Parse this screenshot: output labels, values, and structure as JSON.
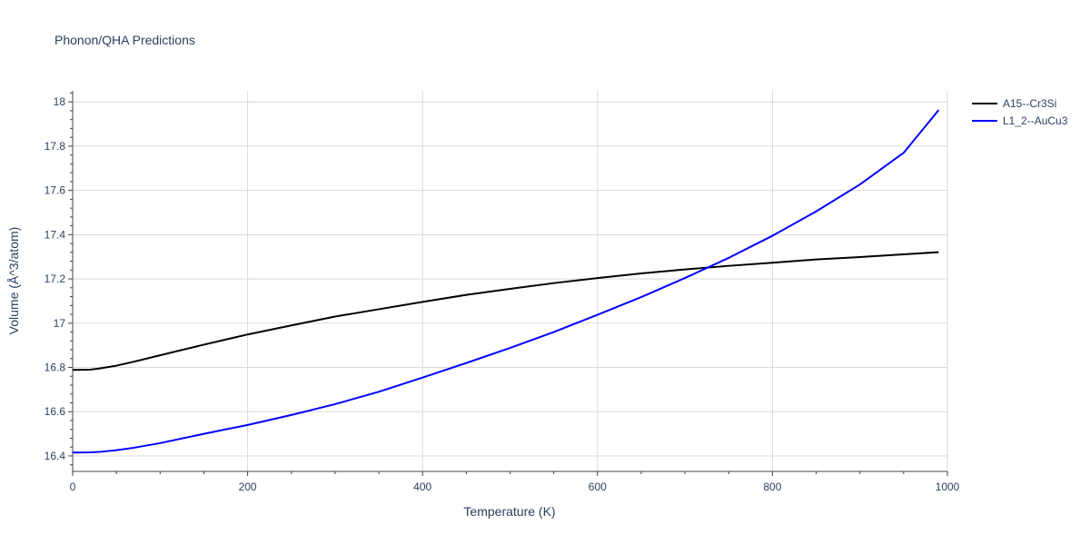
{
  "chart_data": {
    "type": "line",
    "title": "Phonon/QHA Predictions",
    "xlabel": "Temperature (K)",
    "ylabel": "Volume (Å^3/atom)",
    "xlim": [
      0,
      1000
    ],
    "ylim": [
      16.33,
      18.05
    ],
    "x_ticks": [
      0,
      200,
      400,
      600,
      800,
      1000
    ],
    "y_ticks": [
      16.4,
      16.6,
      16.8,
      17,
      17.2,
      17.4,
      17.6,
      17.8,
      18
    ],
    "x_tick_labels": [
      "0",
      "200",
      "400",
      "600",
      "800",
      "1000"
    ],
    "y_tick_labels": [
      "16.4",
      "16.6",
      "16.8",
      "17",
      "17.2",
      "17.4",
      "17.6",
      "17.8",
      "18"
    ],
    "grid": true,
    "legend_position": "top-right",
    "series": [
      {
        "name": "A15--Cr3Si",
        "color": "#000000",
        "x": [
          0,
          20,
          30,
          50,
          70,
          100,
          150,
          200,
          250,
          300,
          350,
          400,
          450,
          500,
          550,
          600,
          650,
          700,
          750,
          800,
          850,
          900,
          950,
          990
        ],
        "y": [
          16.789,
          16.79,
          16.795,
          16.808,
          16.826,
          16.855,
          16.903,
          16.949,
          16.99,
          17.03,
          17.063,
          17.096,
          17.128,
          17.155,
          17.181,
          17.204,
          17.225,
          17.243,
          17.259,
          17.273,
          17.288,
          17.299,
          17.311,
          17.321
        ]
      },
      {
        "name": "L1_2--AuCu3",
        "color": "#0000ff",
        "x": [
          0,
          20,
          30,
          50,
          70,
          100,
          150,
          200,
          250,
          300,
          350,
          400,
          450,
          500,
          550,
          600,
          650,
          700,
          750,
          800,
          850,
          900,
          950,
          990
        ],
        "y": [
          16.415,
          16.416,
          16.418,
          16.426,
          16.437,
          16.458,
          16.5,
          16.54,
          16.585,
          16.634,
          16.69,
          16.754,
          16.82,
          16.888,
          16.96,
          17.038,
          17.118,
          17.204,
          17.295,
          17.395,
          17.505,
          17.627,
          17.77,
          17.963
        ]
      }
    ]
  }
}
